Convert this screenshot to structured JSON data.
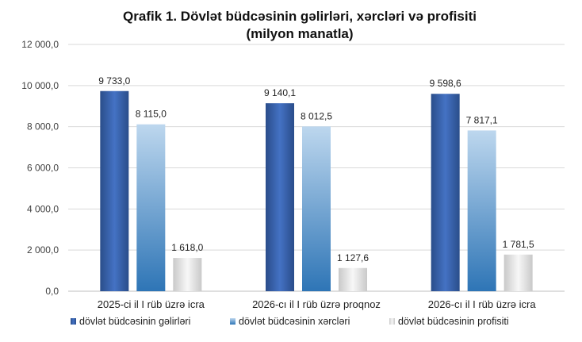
{
  "chart_data": {
    "type": "bar",
    "title_line1": "Qrafik 1. Dövlət büdcəsinin gəlirləri, xərcləri və profisiti",
    "title_line2": "(milyon manatla)",
    "categories": [
      "2025-ci il I rüb üzrə icra",
      "2026-cı il I rüb üzrə proqnoz",
      "2026-cı il I rüb üzrə icra"
    ],
    "series": [
      {
        "name": "dövlət büdcəsinin gəlirləri",
        "values": [
          9733.0,
          9140.1,
          9598.6
        ],
        "labels": [
          "9 733,0",
          "9 140,1",
          "9 598,6"
        ],
        "color": "#2f5597"
      },
      {
        "name": "dövlət büdcəsinin xərcləri",
        "values": [
          8115.0,
          8012.5,
          7817.1
        ],
        "labels": [
          "8 115,0",
          "8 012,5",
          "7 817,1"
        ],
        "color": "#5b9bd5"
      },
      {
        "name": "dövlət büdcəsinin profisiti",
        "values": [
          1618.0,
          1127.6,
          1781.5
        ],
        "labels": [
          "1 618,0",
          "1 127,6",
          "1 781,5"
        ],
        "color": "#d9d9d9"
      }
    ],
    "ylim": [
      0,
      12000
    ],
    "yticks": [
      0,
      2000,
      4000,
      6000,
      8000,
      10000,
      12000
    ],
    "ytick_labels": [
      "0,0",
      "2 000,0",
      "4 000,0",
      "6 000,0",
      "8 000,0",
      "10 000,0",
      "12 000,0"
    ],
    "grid": true,
    "legend_position": "bottom"
  }
}
